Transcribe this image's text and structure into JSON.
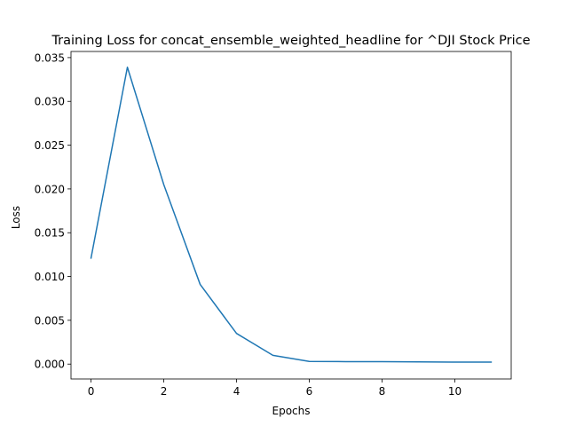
{
  "chart_data": {
    "type": "line",
    "title": "Training Loss for concat_ensemble_weighted_headline for ^DJI Stock Price",
    "xlabel": "Epochs",
    "ylabel": "Loss",
    "xlim": [
      -0.55,
      11.55
    ],
    "ylim": [
      -0.0017,
      0.0357
    ],
    "xticks": [
      0,
      2,
      4,
      6,
      8,
      10
    ],
    "xtick_labels": [
      "0",
      "2",
      "4",
      "6",
      "8",
      "10"
    ],
    "yticks": [
      0.0,
      0.005,
      0.01,
      0.015,
      0.02,
      0.025,
      0.03,
      0.035
    ],
    "ytick_labels": [
      "0.000",
      "0.005",
      "0.010",
      "0.015",
      "0.020",
      "0.025",
      "0.030",
      "0.035"
    ],
    "grid": false,
    "series": [
      {
        "color": "#1f77b4",
        "x": [
          0,
          1,
          2,
          3,
          4,
          5,
          6,
          7,
          8,
          9,
          10,
          11
        ],
        "values": [
          0.0121,
          0.0339,
          0.0205,
          0.0091,
          0.0035,
          0.001,
          0.0003,
          0.00028,
          0.00027,
          0.00025,
          0.00023,
          0.00022
        ]
      }
    ]
  }
}
